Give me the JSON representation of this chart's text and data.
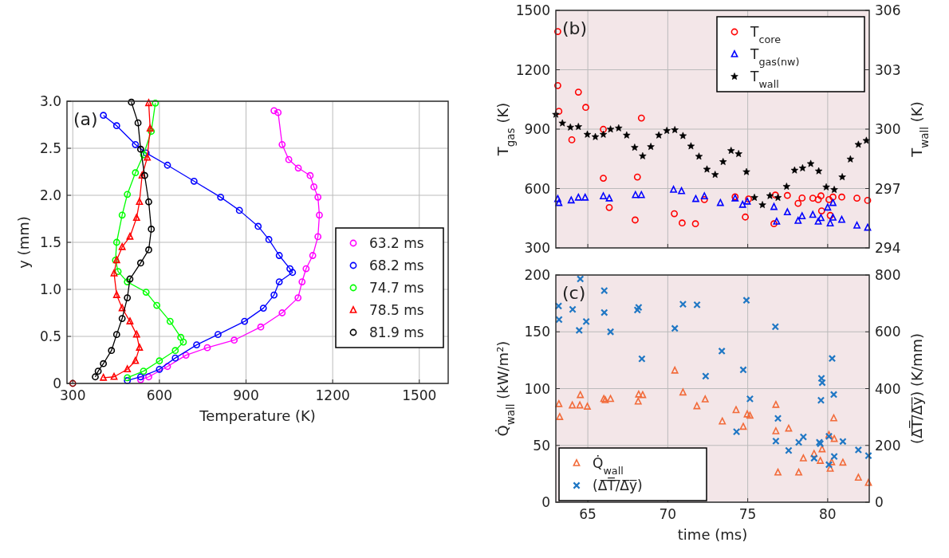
{
  "chart_data": [
    {
      "type": "line",
      "xlabel": "Temperature (K)",
      "ylabel": "y (mm)",
      "annotations": [
        "(a)"
      ],
      "xlim": [
        280,
        1600
      ],
      "xticks": [
        300,
        600,
        900,
        1200,
        1500
      ],
      "ylim": [
        0,
        3
      ],
      "yticks": [
        0,
        0.5,
        {
          "value": 1,
          "label": "1.0"
        },
        1.5,
        {
          "value": 2,
          "label": "2.0"
        },
        2.5,
        {
          "value": 3,
          "label": "3.0"
        }
      ],
      "grid": true,
      "legend": "bottom right",
      "series": [
        {
          "name": "63.2 ms",
          "color": "#ff00ff",
          "marker": "circle",
          "x": [
            997,
            1011,
            1025,
            1048,
            1081,
            1122,
            1135,
            1149,
            1154,
            1149,
            1131,
            1108,
            1094,
            1080,
            1025,
            951,
            859,
            766,
            692,
            628,
            563,
            535
          ],
          "values": [
            2.9,
            2.88,
            2.54,
            2.38,
            2.29,
            2.21,
            2.09,
            1.98,
            1.79,
            1.56,
            1.36,
            1.22,
            1.08,
            0.91,
            0.75,
            0.6,
            0.46,
            0.38,
            0.3,
            0.18,
            0.07,
            0.04
          ]
        },
        {
          "name": "68.2 ms",
          "color": "#0000ff",
          "marker": "circle",
          "x": [
            406,
            452,
            517,
            554,
            628,
            720,
            812,
            877,
            942,
            979,
            1015,
            1052,
            1061,
            1015,
            997,
            960,
            895,
            803,
            729,
            655,
            600,
            535,
            489
          ],
          "values": [
            2.85,
            2.74,
            2.54,
            2.45,
            2.32,
            2.15,
            1.98,
            1.84,
            1.67,
            1.53,
            1.36,
            1.22,
            1.18,
            1.08,
            0.94,
            0.8,
            0.66,
            0.52,
            0.41,
            0.27,
            0.15,
            0.07,
            0.03
          ]
        },
        {
          "name": "74.7 ms",
          "color": "#00ff00",
          "marker": "circle",
          "x": [
            586,
            572,
            545,
            517,
            489,
            471,
            452,
            448,
            457,
            489,
            554,
            591,
            637,
            674,
            683,
            655,
            600,
            545,
            489
          ],
          "values": [
            2.98,
            2.68,
            2.43,
            2.24,
            2.01,
            1.79,
            1.5,
            1.31,
            1.19,
            1.08,
            0.97,
            0.83,
            0.66,
            0.49,
            0.44,
            0.35,
            0.24,
            0.13,
            0.06
          ]
        },
        {
          "name": "78.5 ms",
          "color": "#ff0000",
          "marker": "triangle",
          "x": [
            563,
            568,
            558,
            540,
            531,
            521,
            498,
            471,
            452,
            443,
            452,
            471,
            498,
            521,
            531,
            517,
            489,
            443,
            406
          ],
          "values": [
            2.98,
            2.71,
            2.4,
            2.21,
            1.93,
            1.76,
            1.56,
            1.45,
            1.31,
            1.17,
            0.94,
            0.8,
            0.66,
            0.52,
            0.38,
            0.24,
            0.15,
            0.07,
            0.06
          ]
        },
        {
          "name": "81.9 ms",
          "color": "#000000",
          "marker": "circle",
          "x": [
            503,
            526,
            535,
            549,
            563,
            572,
            563,
            535,
            498,
            489,
            471,
            452,
            434,
            406,
            388,
            378
          ],
          "values": [
            2.99,
            2.77,
            2.49,
            2.21,
            1.93,
            1.64,
            1.42,
            1.28,
            1.11,
            0.91,
            0.69,
            0.52,
            0.35,
            0.21,
            0.13,
            0.07
          ]
        },
        {
          "type": "scatter",
          "color": "#8b0000",
          "marker": "circle",
          "x": [
            300
          ],
          "values": [
            0
          ]
        }
      ]
    },
    {
      "type": "scatter",
      "ylabel": "T$_{gas}$ (K)",
      "y2label": "T$_{wall}$ (K)",
      "annotations": [
        "(b)"
      ],
      "xlim": [
        63,
        82.6
      ],
      "xticks": [
        65,
        70,
        75,
        80
      ],
      "ylim": [
        300,
        1500
      ],
      "yticks": [
        300,
        600,
        900,
        1200,
        1500
      ],
      "y2lim": [
        294,
        306
      ],
      "y2ticks": [
        294,
        297,
        300,
        303,
        306
      ],
      "grid": true,
      "legend": "top right",
      "tick_labels": "y",
      "series": [
        {
          "name": "T$_{core}$",
          "color": "#ff0000",
          "marker": "circle",
          "x": [
            63.12,
            63.12,
            63.19,
            64.0,
            64.41,
            64.87,
            65.97,
            65.97,
            66.34,
            68.35,
            68.1,
            67.96,
            70.41,
            70.9,
            71.73,
            72.29,
            74.21,
            74.85,
            75.05,
            76.73,
            76.64,
            77.48,
            78.15,
            78.4,
            79.07,
            79.41,
            79.58,
            79.62,
            80.08,
            80.16,
            80.33,
            80.88,
            81.83,
            82.5
          ],
          "values": [
            1393,
            1120,
            990,
            846,
            1087,
            1010,
            899,
            652,
            504,
            956,
            658,
            441,
            473,
            426,
            422,
            544,
            558,
            456,
            547,
            567,
            422,
            565,
            525,
            552,
            551,
            544,
            563,
            487,
            544,
            464,
            557,
            557,
            551,
            540
          ]
        },
        {
          "name": "T$_{gas(nw)}$",
          "color": "#0000ff",
          "marker": "triangle",
          "x": [
            63.12,
            63.19,
            63.96,
            64.41,
            64.83,
            65.97,
            66.34,
            67.98,
            68.35,
            70.36,
            70.86,
            71.75,
            72.29,
            73.29,
            74.21,
            74.68,
            74.97,
            76.64,
            76.81,
            77.48,
            78.15,
            78.4,
            79.07,
            79.41,
            79.58,
            80.0,
            80.16,
            80.33,
            80.33,
            80.88,
            81.83,
            82.5
          ],
          "values": [
            547,
            527,
            540,
            554,
            554,
            561,
            550,
            567,
            567,
            594,
            587,
            547,
            561,
            527,
            550,
            518,
            534,
            507,
            433,
            480,
            437,
            460,
            467,
            433,
            451,
            504,
            424,
            527,
            453,
            442,
            413,
            402
          ]
        },
        {
          "name": "T$_{wall}$",
          "color": "#000000",
          "marker": "star",
          "axis": "y2",
          "x": [
            63.0,
            63.41,
            63.91,
            64.41,
            64.97,
            65.47,
            65.97,
            66.42,
            66.93,
            67.43,
            67.93,
            68.43,
            68.94,
            69.44,
            69.94,
            70.44,
            70.95,
            71.45,
            71.95,
            72.45,
            72.96,
            73.46,
            73.96,
            74.43,
            74.92,
            75.42,
            75.92,
            76.39,
            76.89,
            77.43,
            77.93,
            78.43,
            78.94,
            79.44,
            79.91,
            80.41,
            80.91,
            81.42,
            81.92,
            82.42
          ],
          "values": [
            300.74,
            300.3,
            300.09,
            300.12,
            299.73,
            299.61,
            299.73,
            299.99,
            300.05,
            299.69,
            299.07,
            298.64,
            299.11,
            299.69,
            299.92,
            299.96,
            299.66,
            299.14,
            298.62,
            297.97,
            297.7,
            298.35,
            298.91,
            298.75,
            297.84,
            296.54,
            296.17,
            296.63,
            296.54,
            297.1,
            297.92,
            298.03,
            298.25,
            297.88,
            297.07,
            296.94,
            297.58,
            298.48,
            299.22,
            299.42
          ]
        }
      ]
    },
    {
      "type": "scatter",
      "xlabel": "time (ms)",
      "ylabel": "Q̇$_{wall}$  (kW/m²)",
      "y2label": "(Δ̅T̅/̅Δ̅y̅)  (K/mm)",
      "annotations": [
        "(c)"
      ],
      "xlim": [
        63,
        82.6
      ],
      "xticks": [
        65,
        70,
        75,
        80
      ],
      "ylim": [
        0,
        200
      ],
      "yticks": [
        0,
        50,
        100,
        150,
        200
      ],
      "y2lim": [
        0,
        800
      ],
      "y2ticks": [
        0,
        200,
        400,
        600,
        800
      ],
      "grid": true,
      "legend": "bottom left",
      "series": [
        {
          "name": "Q̇$_{wall}$",
          "color": "#f26b3a",
          "marker": "triangle",
          "x": [
            63.19,
            63.24,
            64.03,
            64.5,
            64.53,
            64.97,
            66.0,
            66.09,
            66.42,
            68.15,
            68.18,
            68.43,
            70.44,
            70.95,
            71.82,
            72.34,
            73.41,
            74.27,
            74.72,
            74.97,
            75.14,
            76.76,
            76.76,
            76.89,
            77.56,
            78.19,
            78.48,
            79.15,
            79.54,
            79.65,
            80.08,
            80.16,
            80.25,
            80.38,
            80.41,
            80.95,
            81.92,
            82.55
          ],
          "values": [
            86.4,
            75.0,
            85.2,
            85.2,
            94.3,
            84.1,
            90.9,
            89.8,
            90.9,
            88.6,
            94.8,
            94.3,
            115.9,
            96.6,
            84.5,
            90.5,
            71.1,
            81.1,
            66.4,
            77.3,
            76.1,
            85.7,
            62.5,
            26.1,
            64.8,
            26.1,
            38.6,
            42.5,
            36.4,
            46.6,
            59.1,
            29.5,
            35.2,
            73.9,
            55.7,
            34.8,
            21.6,
            17.0
          ]
        },
        {
          "name": "(Δ̅T̅/̅Δ̅y̅)",
          "color": "#1f77c4",
          "marker": "cross",
          "axis": "y2",
          "x": [
            63.17,
            63.2,
            64.05,
            64.46,
            64.53,
            64.9,
            66.03,
            66.03,
            66.42,
            68.1,
            68.18,
            68.38,
            70.44,
            70.95,
            71.83,
            73.38,
            72.37,
            74.3,
            74.72,
            74.92,
            75.14,
            76.73,
            76.89,
            76.76,
            77.56,
            78.19,
            78.48,
            79.15,
            79.48,
            79.54,
            79.58,
            79.61,
            79.66,
            80.08,
            80.08,
            80.28,
            80.38,
            80.41,
            80.95,
            81.92,
            82.55
          ],
          "values": [
            691,
            643,
            679,
            605,
            786,
            636,
            745,
            668,
            600,
            677,
            686,
            505,
            612,
            697,
            695,
            532,
            444,
            248,
            466,
            711,
            364,
            618,
            295,
            215,
            182,
            211,
            230,
            155,
            211,
            206,
            359,
            436,
            421,
            132,
            232,
            506,
            379,
            161,
            214,
            184,
            164
          ]
        }
      ]
    }
  ]
}
